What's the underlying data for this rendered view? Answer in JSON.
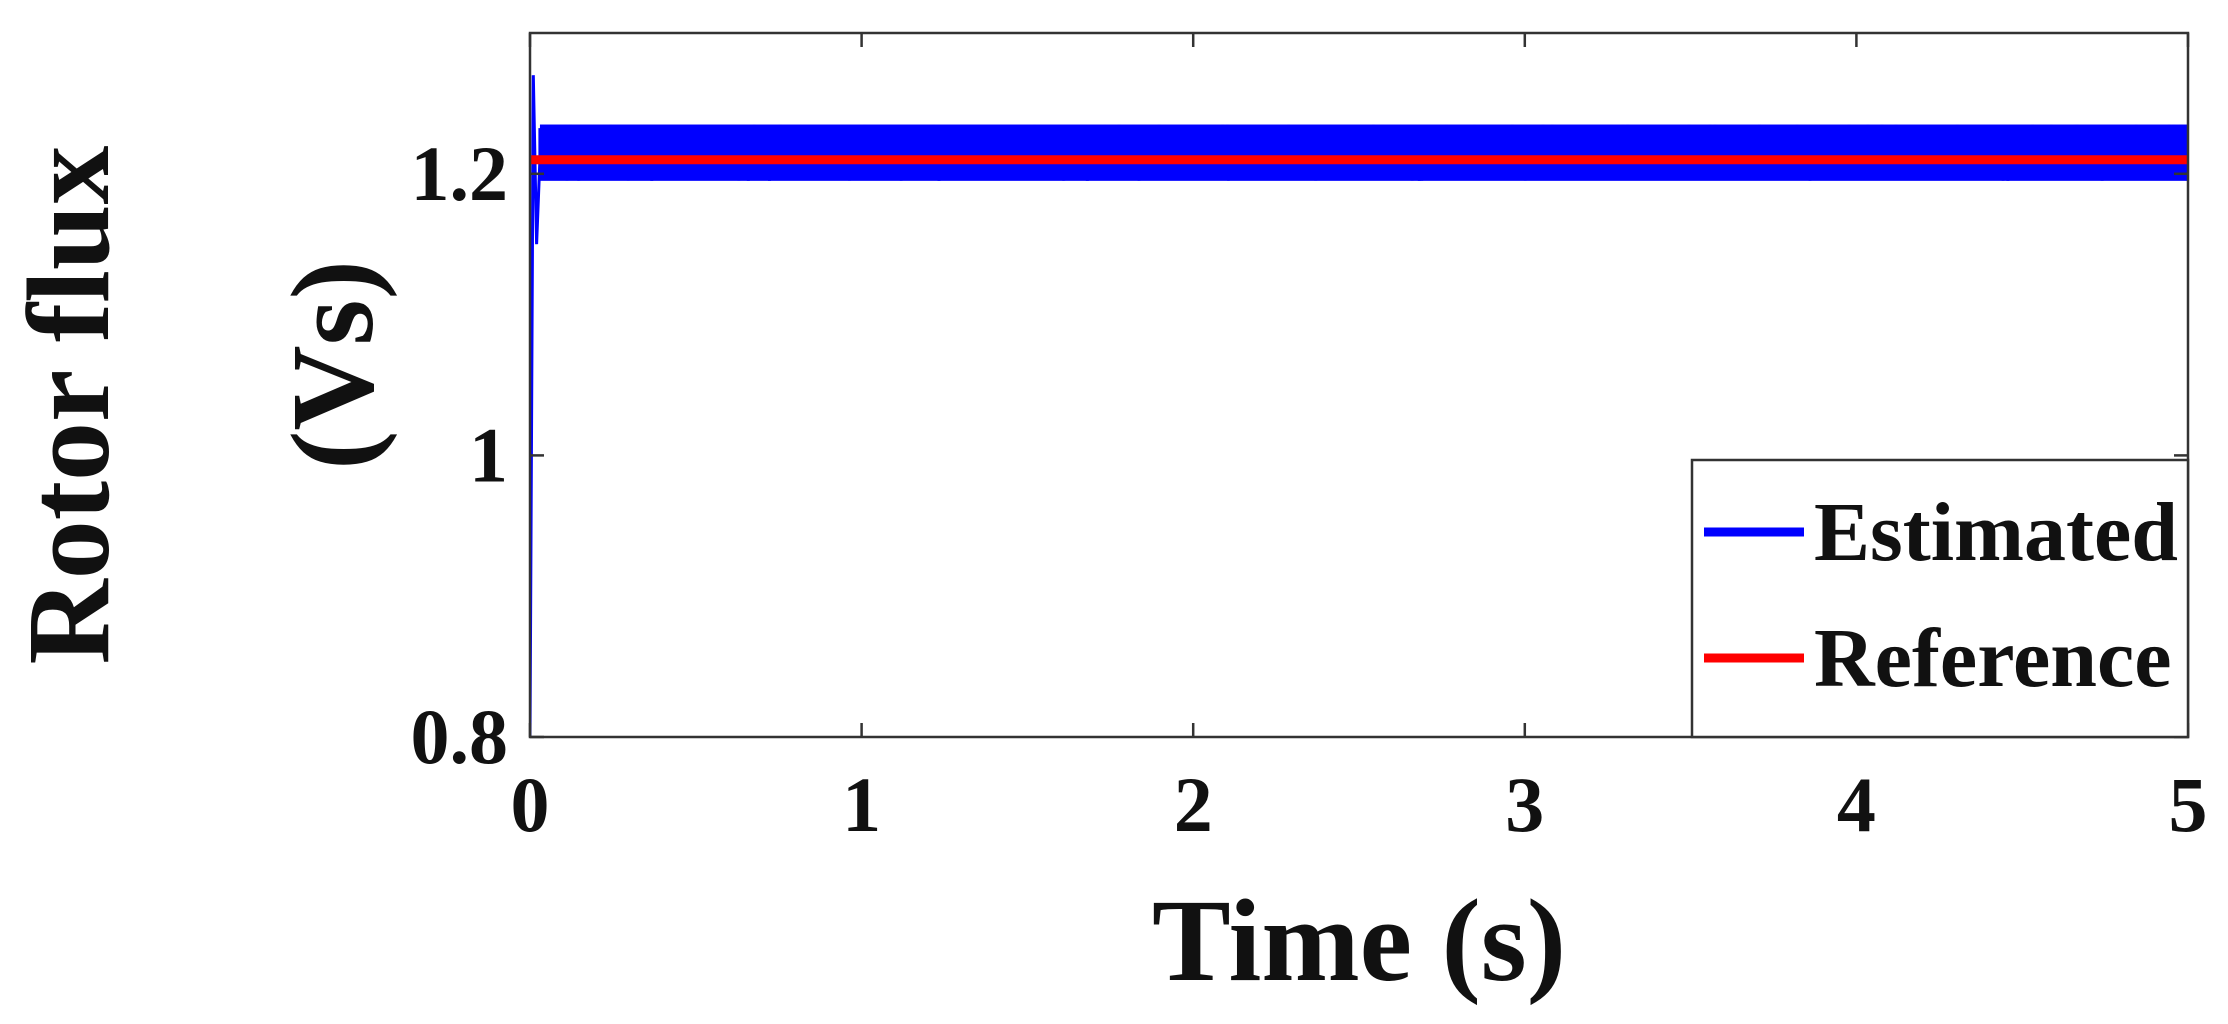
{
  "chart_data": {
    "type": "line",
    "xlabel": "Time (s)",
    "ylabel": "Rotor flux (Vs)",
    "ylabel_lines": [
      "Rotor flux",
      "(Vs)"
    ],
    "xlim": [
      0,
      5
    ],
    "ylim": [
      0.8,
      1.3
    ],
    "x_ticks": [
      0,
      1,
      2,
      3,
      4,
      5
    ],
    "x_tick_labels": [
      "0",
      "1",
      "2",
      "3",
      "4",
      "5"
    ],
    "y_ticks": [
      0.8,
      1.0,
      1.2
    ],
    "y_tick_labels": [
      "0.8",
      "1",
      "1.2"
    ],
    "grid": false,
    "legend_position": "bottom-right",
    "series": [
      {
        "name": "Estimated",
        "color": "#0000ff",
        "steady_value": 1.21,
        "band": [
          1.195,
          1.235
        ],
        "points": [
          [
            0,
            0.8
          ],
          [
            0.01,
            1.27
          ],
          [
            0.02,
            1.15
          ],
          [
            0.03,
            1.21
          ],
          [
            5,
            1.21
          ]
        ]
      },
      {
        "name": "Reference",
        "color": "#ff0000",
        "points": [
          [
            0,
            1.21
          ],
          [
            5,
            1.21
          ]
        ]
      }
    ]
  }
}
